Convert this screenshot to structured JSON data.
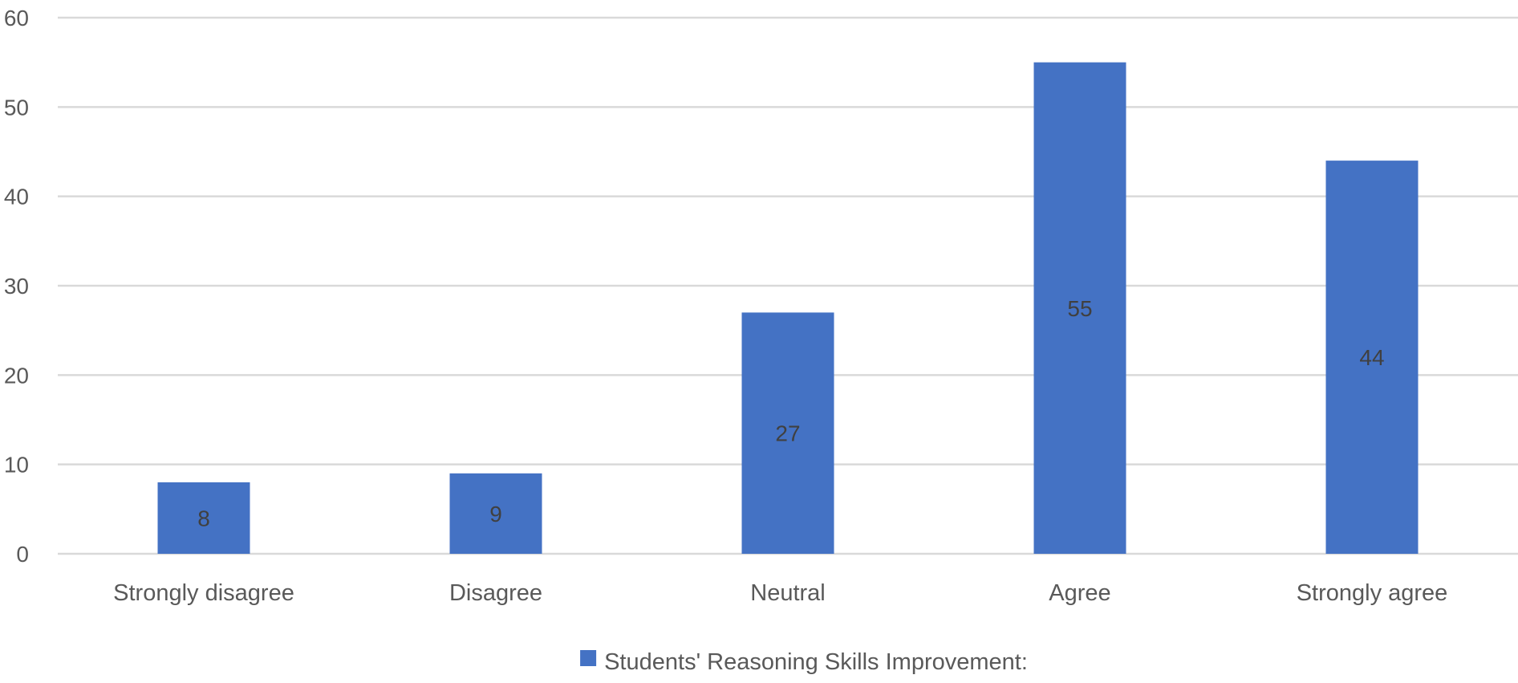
{
  "chart_data": {
    "type": "bar",
    "categories": [
      "Strongly disagree",
      "Disagree",
      "Neutral",
      "Agree",
      "Strongly agree"
    ],
    "series": [
      {
        "name": "Students' Reasoning Skills Improvement:",
        "values": [
          8,
          9,
          27,
          55,
          44
        ],
        "color": "#4472C4"
      }
    ],
    "ylim": [
      0,
      60
    ],
    "yticks": [
      0,
      10,
      20,
      30,
      40,
      50,
      60
    ],
    "grid": true,
    "data_labels": true,
    "legend_position": "bottom",
    "colors": {
      "bar": "#4472C4",
      "grid": "#d9d9d9",
      "axis_text": "#595959",
      "data_label": "#404040"
    }
  }
}
